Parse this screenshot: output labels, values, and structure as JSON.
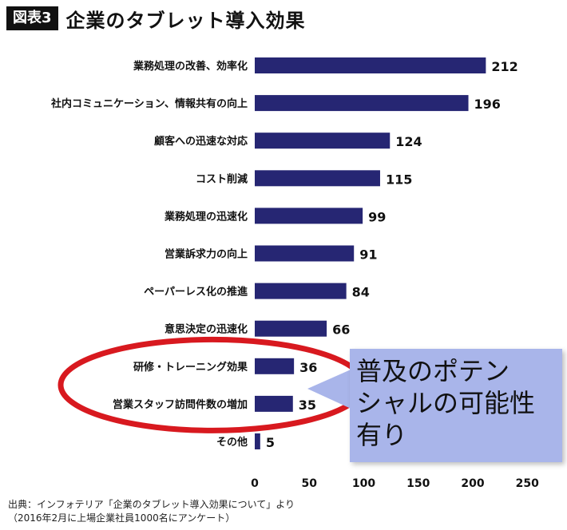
{
  "header": {
    "badge": "図表3",
    "title": "企業のタブレット導入効果"
  },
  "chart_data": {
    "type": "bar",
    "orientation": "horizontal",
    "title": "企業のタブレット導入効果",
    "categories": [
      "業務処理の改善、効率化",
      "社内コミュニケーション、情報共有の向上",
      "顧客への迅速な対応",
      "コスト削減",
      "業務処理の迅速化",
      "営業訴求力の向上",
      "ペーパーレス化の推進",
      "意思決定の迅速化",
      "研修・トレーニング効果",
      "営業スタッフ訪問件数の増加",
      "その他"
    ],
    "values": [
      212,
      196,
      124,
      115,
      99,
      91,
      84,
      66,
      36,
      35,
      5
    ],
    "x_ticks": [
      0,
      50,
      100,
      150,
      200,
      250
    ],
    "xlim": [
      0,
      250
    ],
    "grid": false,
    "bar_color": "#262673",
    "highlight_categories": [
      "研修・トレーニング効果",
      "営業スタッフ訪問件数の増加"
    ],
    "highlight_color": "#d8191f"
  },
  "callout": {
    "lines": [
      "普及のポテン",
      "シャルの可能性",
      "有り"
    ],
    "background": "#a9b5ea"
  },
  "source": {
    "line1": "出典：インフォテリア「企業のタブレット導入効果について」より",
    "line2": "（2016年2月に上場企業社員1000名にアンケート）"
  }
}
